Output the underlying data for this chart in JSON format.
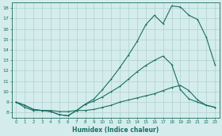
{
  "xlabel": "Humidex (Indice chaleur)",
  "bg_color": "#d4ecec",
  "grid_color": "#b0d0d0",
  "line_color": "#1a6e64",
  "xlim": [
    -0.5,
    23.5
  ],
  "ylim": [
    7.5,
    18.5
  ],
  "xticks": [
    0,
    1,
    2,
    3,
    4,
    5,
    6,
    7,
    8,
    9,
    10,
    11,
    12,
    13,
    14,
    15,
    16,
    17,
    18,
    19,
    20,
    21,
    22,
    23
  ],
  "yticks": [
    8,
    9,
    10,
    11,
    12,
    13,
    14,
    15,
    16,
    17,
    18
  ],
  "curve1_x": [
    0,
    1,
    2,
    3,
    4,
    5,
    6,
    7,
    8,
    9,
    10,
    11,
    12,
    13,
    14,
    15,
    16,
    17,
    18,
    19,
    20,
    21,
    22,
    23
  ],
  "curve1_y": [
    9.0,
    8.7,
    8.3,
    8.2,
    8.1,
    7.8,
    7.7,
    8.2,
    8.8,
    9.3,
    10.2,
    11.2,
    12.3,
    13.5,
    14.8,
    16.4,
    17.3,
    16.5,
    18.2,
    18.1,
    17.3,
    16.9,
    15.2,
    12.6
  ],
  "curve2_x": [
    0,
    1,
    2,
    3,
    4,
    5,
    6,
    7,
    8,
    9,
    10,
    11,
    12,
    13,
    14,
    15,
    16,
    17,
    18,
    19,
    20,
    21,
    22,
    23
  ],
  "curve2_y": [
    9.0,
    8.7,
    8.3,
    8.2,
    8.1,
    7.8,
    7.7,
    8.2,
    8.8,
    9.1,
    9.5,
    10.0,
    10.5,
    11.2,
    11.9,
    12.5,
    13.0,
    13.4,
    12.6,
    10.2,
    9.3,
    9.0,
    8.7,
    8.5
  ],
  "curve3_x": [
    0,
    1,
    2,
    3,
    4,
    5,
    6,
    7,
    8,
    9,
    10,
    11,
    12,
    13,
    14,
    15,
    16,
    17,
    18,
    19,
    20,
    21,
    22,
    23
  ],
  "curve3_y": [
    9.0,
    8.5,
    8.2,
    8.2,
    8.2,
    8.1,
    8.1,
    8.2,
    8.2,
    8.3,
    8.5,
    8.7,
    9.0,
    9.2,
    9.4,
    9.6,
    9.8,
    10.1,
    10.4,
    10.6,
    10.1,
    9.2,
    8.7,
    8.5
  ]
}
